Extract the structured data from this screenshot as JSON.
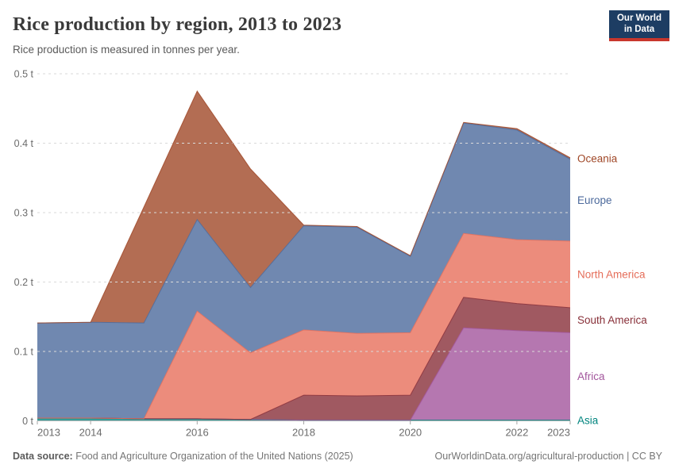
{
  "header": {
    "title": "Rice production by region, 2013 to 2023",
    "subtitle": "Rice production is measured in tonnes per year.",
    "logo": {
      "line1": "Our World",
      "line2": "in Data",
      "bg_color": "#1D3D63",
      "accent_color": "#C8372D"
    }
  },
  "chart_data": {
    "type": "area",
    "stacked": true,
    "title": "Rice production by region, 2013 to 2023",
    "ylabel": "",
    "xlabel": "",
    "unit_suffix": " t",
    "ylim": [
      0,
      0.5
    ],
    "y_ticks": [
      0,
      0.1,
      0.2,
      0.3,
      0.4,
      0.5
    ],
    "x_ticks": [
      2013,
      2014,
      2016,
      2018,
      2020,
      2022,
      2023
    ],
    "grid": "dashed",
    "legend_position": "right-edge-labels",
    "x": [
      2013,
      2014,
      2015,
      2016,
      2017,
      2018,
      2019,
      2020,
      2021,
      2022,
      2023
    ],
    "series": [
      {
        "id": "asia",
        "name": "Asia",
        "color": "#00847E",
        "fill": "#339D98",
        "values": [
          0.004,
          0.004,
          0.003,
          0.003,
          0.002,
          0.001,
          0.001,
          0.001,
          0.001,
          0.001,
          0.001
        ]
      },
      {
        "id": "africa",
        "name": "Africa",
        "color": "#A2559C",
        "fill": "#B577B0",
        "values": [
          0,
          0,
          0,
          0,
          0,
          0,
          0,
          0,
          0.133,
          0.129,
          0.126
        ]
      },
      {
        "id": "south-america",
        "name": "South America",
        "color": "#883039",
        "fill": "#A05961",
        "values": [
          0,
          0,
          0,
          0,
          0,
          0.036,
          0.035,
          0.036,
          0.044,
          0.039,
          0.036
        ]
      },
      {
        "id": "north-america",
        "name": "North America",
        "color": "#E56E5A",
        "fill": "#EC8C7C",
        "values": [
          0,
          0,
          0,
          0.155,
          0.096,
          0.094,
          0.09,
          0.09,
          0.092,
          0.092,
          0.096
        ]
      },
      {
        "id": "europe",
        "name": "Europe",
        "color": "#4C6A9C",
        "fill": "#7088B0",
        "values": [
          0.137,
          0.138,
          0.138,
          0.132,
          0.094,
          0.15,
          0.153,
          0.11,
          0.159,
          0.158,
          0.118
        ]
      },
      {
        "id": "oceania",
        "name": "Oceania",
        "color": "#A04828",
        "fill": "#B36D53",
        "values": [
          0,
          0,
          0.167,
          0.185,
          0.171,
          0.001,
          0.001,
          0.001,
          0.001,
          0.002,
          0.002
        ]
      }
    ]
  },
  "footer": {
    "source_label": "Data source:",
    "source_text": " Food and Agriculture Organization of the United Nations (2025)",
    "credit": "OurWorldinData.org/agricultural-production | CC BY"
  }
}
